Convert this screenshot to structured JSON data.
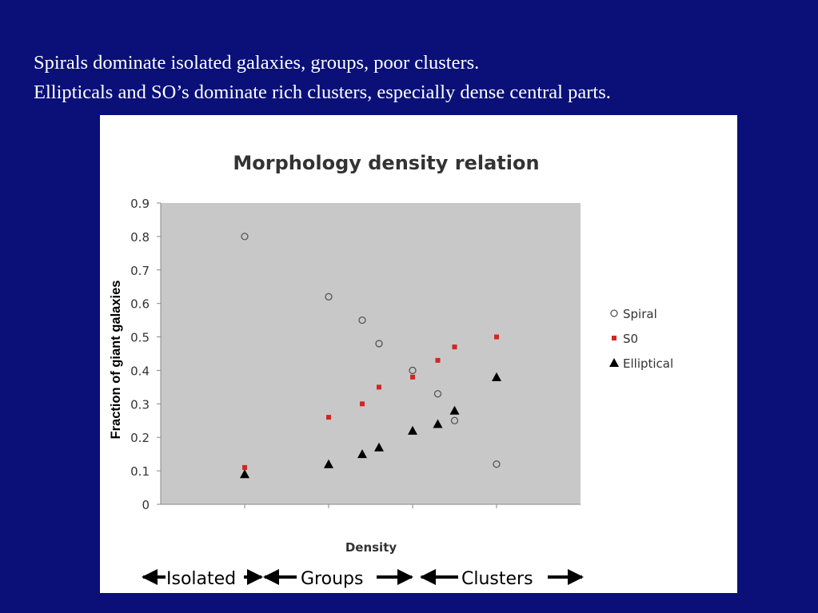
{
  "slide": {
    "bullet_lines": [
      "Spirals dominate isolated galaxies, groups, poor clusters.",
      "Ellipticals and SO’s dominate rich clusters, especially dense central parts."
    ]
  },
  "colors": {
    "background": "#0a1078",
    "plot_area": "#c8c8c8",
    "s0": "#d22626",
    "elliptical": "#000000"
  },
  "chart_data": {
    "type": "scatter",
    "title": "Morphology density relation",
    "xlabel": "Density",
    "ylabel": "Fraction of giant galaxies",
    "ylim": [
      0,
      0.9
    ],
    "yticks": [
      "0",
      "0.1",
      "0.2",
      "0.3",
      "0.4",
      "0.5",
      "0.6",
      "0.7",
      "0.8",
      "0.9"
    ],
    "grid": false,
    "legend_position": "right",
    "x_categories": [
      "Isolated",
      "Groups",
      "Clusters"
    ],
    "x": [
      1,
      2,
      2.4,
      2.6,
      3,
      3.3,
      3.5,
      4
    ],
    "xlim": [
      0,
      5
    ],
    "series": [
      {
        "name": "Spiral",
        "marker": "open-circle",
        "values": [
          0.8,
          0.62,
          0.55,
          0.48,
          0.4,
          0.33,
          0.25,
          0.12
        ]
      },
      {
        "name": "S0",
        "marker": "square",
        "values": [
          0.11,
          0.26,
          0.3,
          0.35,
          0.38,
          0.43,
          0.47,
          0.5
        ]
      },
      {
        "name": "Elliptical",
        "marker": "triangle",
        "values": [
          0.09,
          0.12,
          0.15,
          0.17,
          0.22,
          0.24,
          0.28,
          0.38
        ]
      }
    ]
  }
}
